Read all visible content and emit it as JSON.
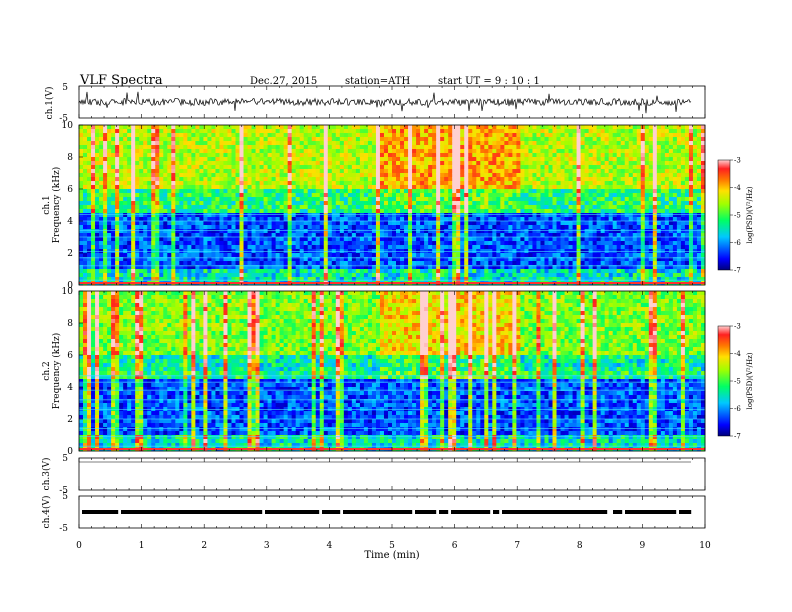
{
  "header": {
    "title": "VLF  Spectra",
    "date": "Dec.27, 2015",
    "station": "station=ATH",
    "start": "start  UT  =   9  : 10 : 1"
  },
  "chart_data": [
    {
      "type": "line",
      "name": "ch1-waveform",
      "ylabel": "ch.1(V)",
      "ylim": [
        -5,
        5
      ],
      "xlim": [
        0,
        10
      ],
      "yticks": [
        "5",
        "-5"
      ]
    },
    {
      "type": "heatmap",
      "name": "ch1-spectrogram",
      "ylabel_ch": "ch.1",
      "ylabel": "Frequency  (kHz)",
      "xlim": [
        0,
        10
      ],
      "ylim": [
        0,
        10
      ],
      "yticks": [
        "0",
        "2",
        "4",
        "6",
        "8",
        "10"
      ],
      "colorbar": {
        "label": "log(PSD)(V²/Hz)",
        "range": [
          -7,
          -3
        ],
        "ticks": [
          "-3",
          "-4",
          "-5",
          "-6",
          "-7"
        ]
      }
    },
    {
      "type": "heatmap",
      "name": "ch2-spectrogram",
      "ylabel_ch": "ch.2",
      "ylabel": "Frequency  (kHz)",
      "xlim": [
        0,
        10
      ],
      "ylim": [
        0,
        10
      ],
      "yticks": [
        "0",
        "2",
        "4",
        "6",
        "8",
        "10"
      ],
      "colorbar": {
        "label": "log(PSD)(V²/Hz)",
        "range": [
          -7,
          -3
        ],
        "ticks": [
          "-3",
          "-4",
          "-5",
          "-6",
          "-7"
        ]
      }
    },
    {
      "type": "line",
      "name": "ch3-waveform",
      "ylabel": "ch.3(V)",
      "ylim": [
        -5,
        5
      ],
      "xlim": [
        0,
        10
      ],
      "yticks": [
        "5",
        "-5"
      ]
    },
    {
      "type": "line",
      "name": "ch4-waveform",
      "ylabel": "ch.4(V)",
      "ylim": [
        -5,
        5
      ],
      "xlim": [
        0,
        10
      ],
      "yticks": [
        "5",
        "-5"
      ]
    }
  ],
  "xaxis": {
    "label": "Time  (min)",
    "ticks": [
      "0",
      "1",
      "2",
      "3",
      "4",
      "5",
      "6",
      "7",
      "8",
      "9",
      "10"
    ]
  }
}
